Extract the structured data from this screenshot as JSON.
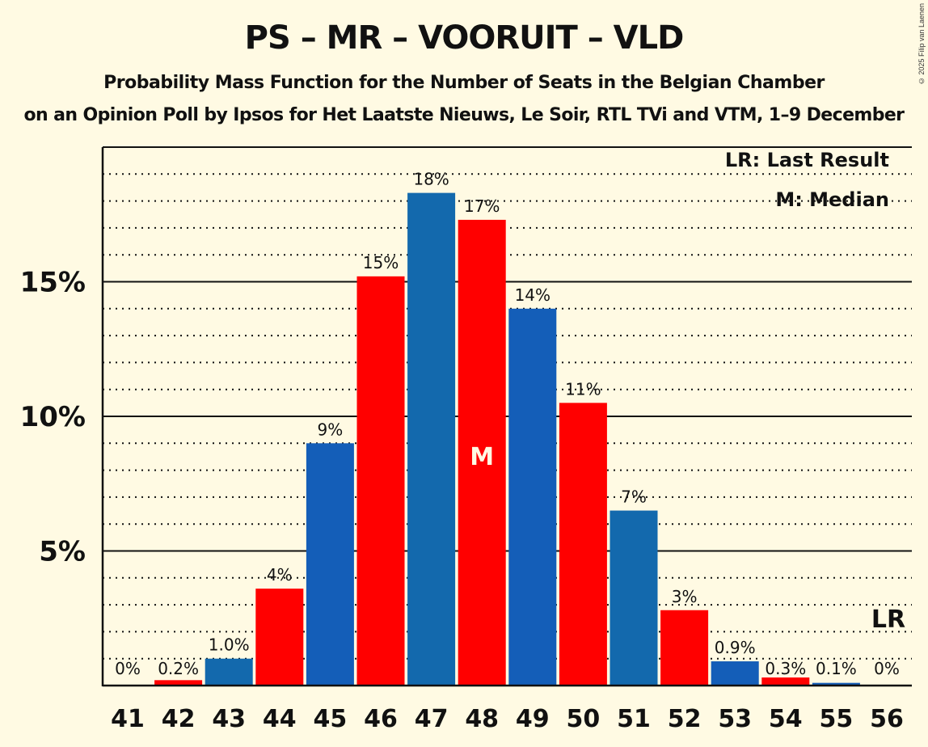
{
  "header": {
    "title": "PS – MR – VOORUIT – VLD",
    "subtitle": "Probability Mass Function for the Number of Seats in the Belgian Chamber",
    "subtitle2": "on an Opinion Poll by Ipsos for Het Laatste Nieuws, Le Soir, RTL TVi and VTM, 1–9 December",
    "copyright": "© 2025 Filip van Laenen"
  },
  "legend": {
    "lr": "LR: Last Result",
    "m": "M: Median"
  },
  "colors": {
    "background": "#FFFAE3",
    "red": "#FF0000",
    "blue_a": "#1369AD",
    "blue_b": "#145EB8"
  },
  "chart_data": {
    "type": "bar",
    "title": "PS – MR – VOORUIT – VLD",
    "subtitle": "Probability Mass Function for the Number of Seats in the Belgian Chamber",
    "xlabel": "",
    "ylabel": "",
    "ylim": [
      0,
      21.5
    ],
    "yticks": [
      "5%",
      "10%",
      "15%"
    ],
    "grid": true,
    "categories": [
      "41",
      "42",
      "43",
      "44",
      "45",
      "46",
      "47",
      "48",
      "49",
      "50",
      "51",
      "52",
      "53",
      "54",
      "55",
      "56"
    ],
    "values": [
      0,
      0.2,
      1.0,
      3.6,
      9.0,
      15.2,
      18.3,
      17.3,
      14.0,
      10.5,
      6.5,
      2.8,
      0.9,
      0.3,
      0.1,
      0
    ],
    "labels": [
      "0%",
      "0.2%",
      "1.0%",
      "4%",
      "9%",
      "15%",
      "18%",
      "17%",
      "14%",
      "11%",
      "7%",
      "3%",
      "0.9%",
      "0.3%",
      "0.1%",
      "0%"
    ],
    "bar_colors": [
      "#FF0000",
      "#FF0000",
      "#1369AD",
      "#FF0000",
      "#145EB8",
      "#FF0000",
      "#1369AD",
      "#FF0000",
      "#145EB8",
      "#FF0000",
      "#1369AD",
      "#FF0000",
      "#145EB8",
      "#FF0000",
      "#145EB8",
      "#FF0000"
    ],
    "median": "48",
    "last_result": "56",
    "annotations": {
      "median_mark": "M",
      "last_result_mark": "LR"
    }
  }
}
